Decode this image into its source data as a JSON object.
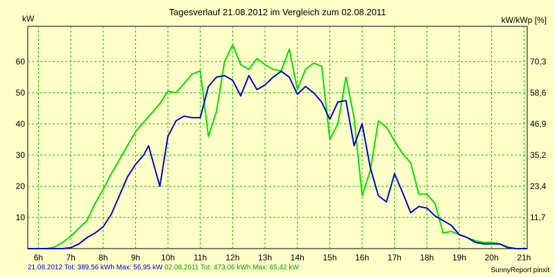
{
  "chart_data": {
    "type": "line",
    "title": "Tagesverlauf 21.08.2012 im Vergleich zum 02.08.2011",
    "ylabel_left": "kW",
    "ylabel_right": "kW/kWp [%]",
    "ylim": [
      0,
      71.3
    ],
    "yticks_left": [
      "10",
      "20",
      "30",
      "40",
      "50",
      "60"
    ],
    "yticks_left_values": [
      10,
      20,
      30,
      40,
      50,
      60
    ],
    "yticks_right": [
      "11,7",
      "23,4",
      "35,2",
      "46,9",
      "58,6",
      "70,3"
    ],
    "xlim": [
      5.67,
      21.1
    ],
    "xticks": [
      "6h",
      "7h",
      "8h",
      "9h",
      "10h",
      "11h",
      "12h",
      "13h",
      "14h",
      "15h",
      "16h",
      "17h",
      "18h",
      "19h",
      "20h",
      "21h"
    ],
    "xticks_values": [
      6,
      7,
      8,
      9,
      10,
      11,
      12,
      13,
      14,
      15,
      16,
      17,
      18,
      19,
      20,
      21
    ],
    "grid": true,
    "series": [
      {
        "name": "21.08.2012",
        "color": "#0000d0",
        "x": [
          5.67,
          6.5,
          6.75,
          7.0,
          7.25,
          7.5,
          7.75,
          8.0,
          8.25,
          8.5,
          8.75,
          9.0,
          9.25,
          9.4,
          9.75,
          10.0,
          10.25,
          10.5,
          10.75,
          11.0,
          11.25,
          11.5,
          11.75,
          12.0,
          12.25,
          12.5,
          12.75,
          13.0,
          13.25,
          13.5,
          13.75,
          14.0,
          14.25,
          14.5,
          14.75,
          15.0,
          15.25,
          15.5,
          15.75,
          16.0,
          16.25,
          16.5,
          16.75,
          17.0,
          17.25,
          17.5,
          17.75,
          18.0,
          18.25,
          18.5,
          18.75,
          19.0,
          19.25,
          19.5,
          19.75,
          20.0,
          20.25,
          20.5,
          20.75,
          21.1
        ],
        "values": [
          0,
          0,
          0,
          0.3,
          1.5,
          3.5,
          5,
          7,
          11,
          17,
          23,
          27,
          30,
          33,
          20,
          36,
          41,
          42.5,
          42,
          42,
          52,
          55,
          55.5,
          54,
          49,
          55.5,
          51,
          52.5,
          55,
          56.9,
          55,
          49.5,
          52,
          50,
          47,
          41.5,
          47,
          47.5,
          33,
          40,
          26,
          17,
          15,
          24,
          18,
          11.5,
          13.5,
          13,
          10.5,
          9,
          7.5,
          4.5,
          3.5,
          2,
          1.5,
          1.5,
          1.5,
          0.3,
          0,
          0
        ]
      },
      {
        "name": "02.08.2011",
        "color": "#00e000",
        "x": [
          5.67,
          6.25,
          6.5,
          6.75,
          7.0,
          7.25,
          7.5,
          7.75,
          8.0,
          8.25,
          8.5,
          8.75,
          9.0,
          9.25,
          9.5,
          9.75,
          10.0,
          10.25,
          10.5,
          10.75,
          11.0,
          11.25,
          11.5,
          11.75,
          12.0,
          12.25,
          12.5,
          12.75,
          13.0,
          13.25,
          13.5,
          13.75,
          14.0,
          14.25,
          14.5,
          14.75,
          15.0,
          15.25,
          15.5,
          15.75,
          16.0,
          16.25,
          16.5,
          16.75,
          17.0,
          17.25,
          17.5,
          17.75,
          18.0,
          18.25,
          18.5,
          18.75,
          19.0,
          19.25,
          19.5,
          19.75,
          20.0,
          20.25,
          20.5,
          20.75,
          21.1
        ],
        "values": [
          0,
          0,
          0.5,
          2,
          4,
          6.5,
          9,
          14.5,
          19,
          24,
          28.5,
          33,
          37.5,
          40.5,
          43.5,
          46.5,
          50.5,
          50,
          53,
          56,
          57,
          36,
          44,
          60,
          65.4,
          59,
          57.5,
          61,
          59,
          57.5,
          57,
          64,
          51,
          57.5,
          59.5,
          58.5,
          35,
          40,
          55,
          42,
          17,
          25,
          41,
          39,
          34.5,
          30.5,
          27.5,
          17.5,
          17.5,
          14.5,
          5,
          5.5,
          4.5,
          3.5,
          2.5,
          2,
          2,
          1.5,
          0.5,
          0,
          0
        ]
      }
    ]
  },
  "footer": {
    "series1_text": "21.08.2012 Tot: 389,56 kWh Max: 56,95 kW",
    "series2_text": "02.08.2011 Tot: 473,06 kWh Max: 65,42 kW",
    "brand": "SunnyReport pinxit"
  },
  "colors": {
    "background": "#ffffc8",
    "grid": "#00c000",
    "axis": "#000000"
  }
}
